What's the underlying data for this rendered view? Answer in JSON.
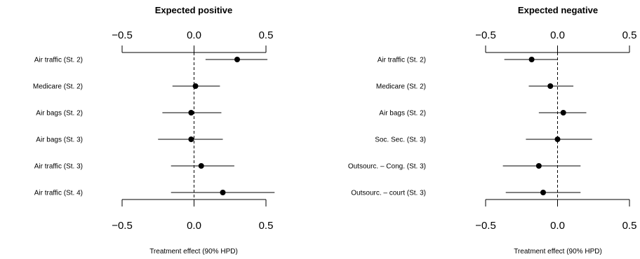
{
  "chart_data": [
    {
      "type": "forest",
      "title": "Expected positive",
      "xlabel": "Treatment effect (90% HPD)",
      "xlim": [
        -0.5,
        0.5
      ],
      "ticks": [
        -0.5,
        0.0,
        0.5
      ],
      "tick_labels": [
        "−0.5",
        "0.0",
        "0.5"
      ],
      "reference_line": 0.0,
      "rows": [
        {
          "label": "Air traffic (St. 2)",
          "estimate": 0.3,
          "low": 0.08,
          "high": 0.51
        },
        {
          "label": "Medicare (St. 2)",
          "estimate": 0.01,
          "low": -0.15,
          "high": 0.18
        },
        {
          "label": "Air bags (St. 2)",
          "estimate": -0.02,
          "low": -0.22,
          "high": 0.19
        },
        {
          "label": "Air bags (St. 3)",
          "estimate": -0.02,
          "low": -0.25,
          "high": 0.2
        },
        {
          "label": "Air traffic (St. 3)",
          "estimate": 0.05,
          "low": -0.16,
          "high": 0.28
        },
        {
          "label": "Air traffic (St. 4)",
          "estimate": 0.2,
          "low": -0.16,
          "high": 0.56
        }
      ]
    },
    {
      "type": "forest",
      "title": "Expected negative",
      "xlabel": "Treatment effect (90% HPD)",
      "xlim": [
        -0.5,
        0.5
      ],
      "ticks": [
        -0.5,
        0.0,
        0.5
      ],
      "tick_labels": [
        "−0.5",
        "0.0",
        "0.5"
      ],
      "reference_line": 0.0,
      "rows": [
        {
          "label": "Air traffic (St. 2)",
          "estimate": -0.18,
          "low": -0.37,
          "high": 0.0
        },
        {
          "label": "Medicare (St. 2)",
          "estimate": -0.05,
          "low": -0.2,
          "high": 0.11
        },
        {
          "label": "Air bags (St. 2)",
          "estimate": 0.04,
          "low": -0.13,
          "high": 0.2
        },
        {
          "label": "Soc. Sec. (St. 3)",
          "estimate": 0.0,
          "low": -0.22,
          "high": 0.24
        },
        {
          "label": "Outsourc. – Cong. (St. 3)",
          "estimate": -0.13,
          "low": -0.38,
          "high": 0.16
        },
        {
          "label": "Outsourc. – court (St. 3)",
          "estimate": -0.1,
          "low": -0.36,
          "high": 0.16
        }
      ]
    }
  ]
}
